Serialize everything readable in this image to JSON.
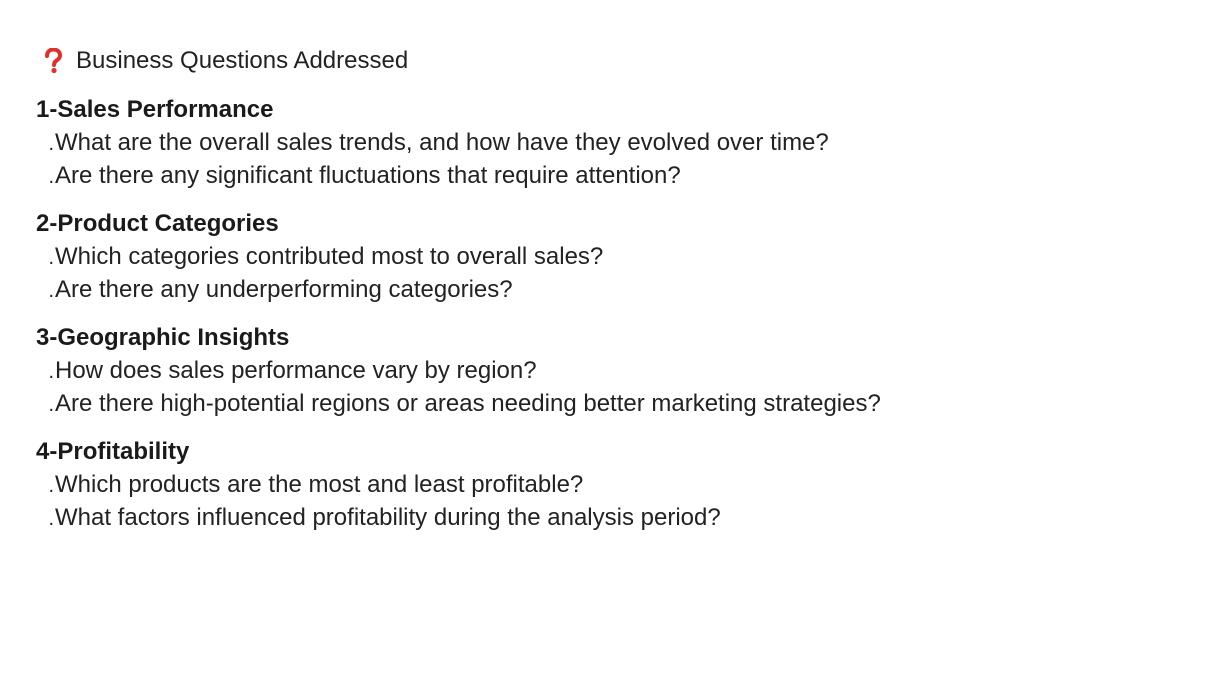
{
  "header": {
    "icon": "question-mark-icon",
    "icon_color": "#e0302a",
    "title": "Business Questions Addressed"
  },
  "sections": [
    {
      "title": "1-Sales Performance",
      "items": [
        "What are the overall sales trends, and how have they evolved over time?",
        "Are there any significant fluctuations that require attention?"
      ]
    },
    {
      "title": "2-Product Categories",
      "items": [
        "Which categories contributed most to overall sales?",
        "Are there any underperforming categories?"
      ]
    },
    {
      "title": "3-Geographic Insights",
      "items": [
        "How does sales performance vary by region?",
        "Are there high-potential regions or areas needing better marketing strategies?"
      ]
    },
    {
      "title": "4-Profitability",
      "items": [
        "Which products are the most and least profitable?",
        "What factors influenced profitability during the analysis period?"
      ]
    }
  ],
  "bullet_char": "."
}
